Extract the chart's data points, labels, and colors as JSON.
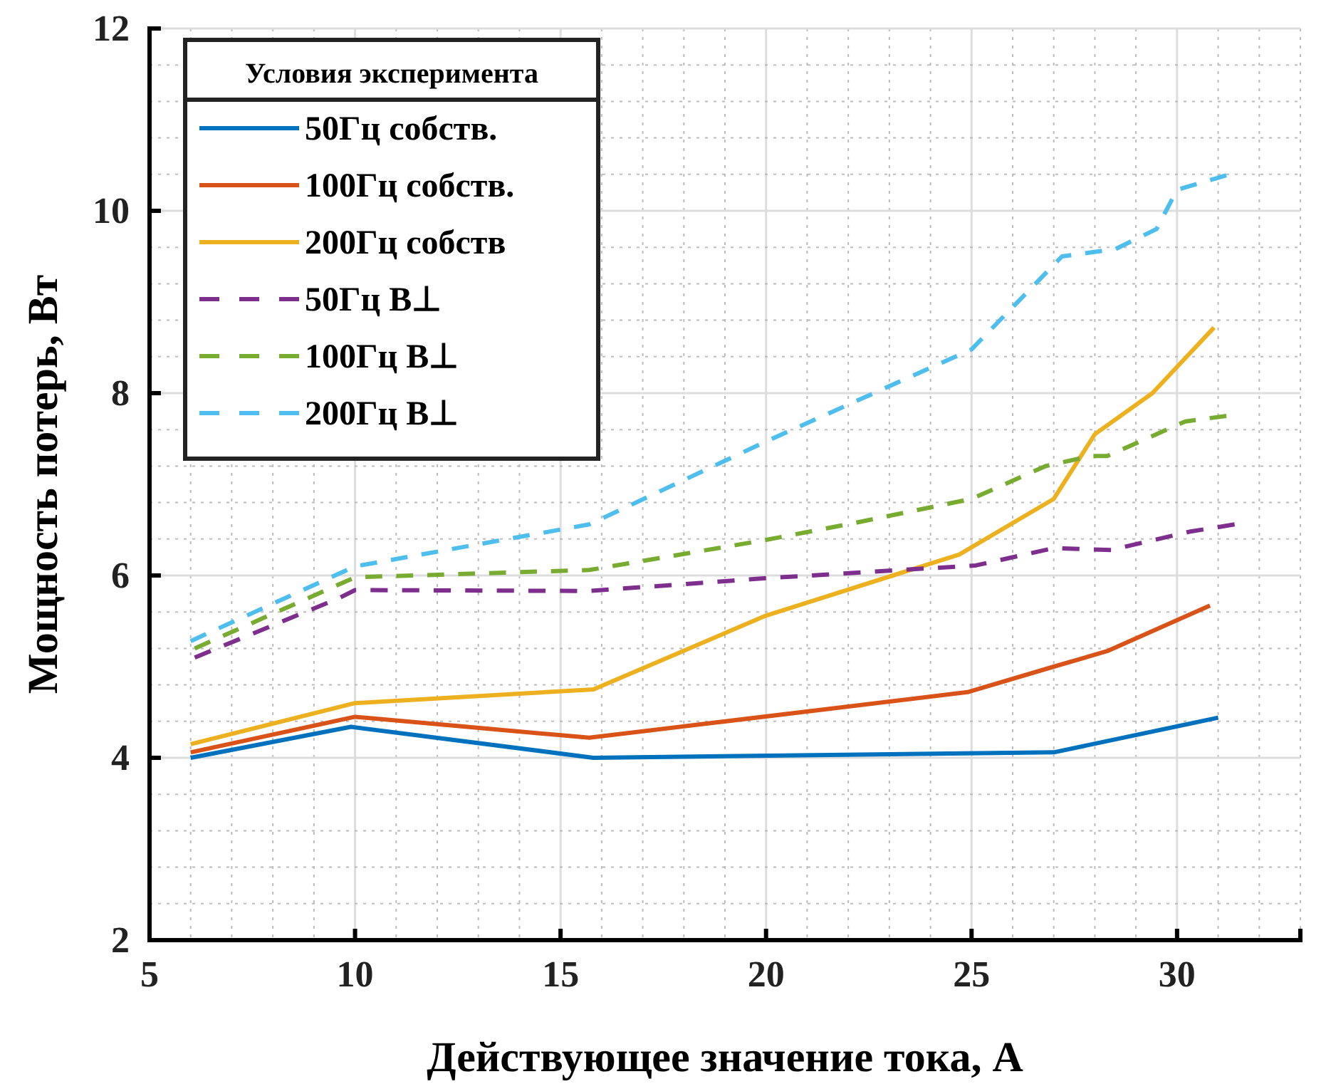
{
  "chart_data": {
    "type": "line",
    "xlabel": "Действующее значение тока, А",
    "ylabel": "Мощность потерь, Вт",
    "legend_title": "Условия эксперимента",
    "legend": "top left",
    "grid": true,
    "xlim": [
      5,
      33
    ],
    "xticks": [
      5,
      10,
      15,
      20,
      25,
      30
    ],
    "ylim": [
      2,
      12
    ],
    "yticks": [
      2,
      4,
      6,
      8,
      10,
      12
    ],
    "series": [
      {
        "name": "50Гц собств.",
        "color": "#0072bd",
        "line_style": "solid",
        "x": [
          6,
          9.9,
          15.8,
          27,
          31
        ],
        "values": [
          4.0,
          4.34,
          4.0,
          4.06,
          4.44
        ]
      },
      {
        "name": "100Гц собств.",
        "color": "#d95319",
        "line_style": "solid",
        "x": [
          6,
          10,
          15.7,
          24.9,
          27,
          28.3,
          30.8
        ],
        "values": [
          4.06,
          4.45,
          4.22,
          4.72,
          5.0,
          5.17,
          5.67
        ]
      },
      {
        "name": "200Гц собств",
        "color": "#edb120",
        "line_style": "solid",
        "x": [
          6,
          10,
          15.8,
          20,
          24.7,
          27,
          28,
          29.4,
          30.9
        ],
        "values": [
          4.15,
          4.6,
          4.75,
          5.56,
          6.23,
          6.84,
          7.55,
          8.0,
          8.72
        ]
      },
      {
        "name": "50Гц B⊥",
        "color": "#7e2f8e",
        "line_style": "dashed",
        "x": [
          6.1,
          9.6,
          10,
          15.7,
          20,
          25.1,
          27,
          28.4,
          30.3,
          31.4
        ],
        "values": [
          5.1,
          5.75,
          5.84,
          5.83,
          5.97,
          6.11,
          6.3,
          6.28,
          6.48,
          6.56
        ]
      },
      {
        "name": "100Гц B⊥",
        "color": "#77ac30",
        "line_style": "dashed",
        "x": [
          6.1,
          10,
          15.7,
          20,
          22.2,
          25,
          26.8,
          27.9,
          28.3,
          29.1,
          30.2,
          31.2
        ],
        "values": [
          5.2,
          5.98,
          6.06,
          6.39,
          6.58,
          6.84,
          7.2,
          7.31,
          7.31,
          7.47,
          7.69,
          7.75
        ]
      },
      {
        "name": "200Гц B⊥",
        "color": "#4dbeee",
        "line_style": "dashed",
        "x": [
          6,
          10,
          15.7,
          20,
          25,
          27.2,
          28.5,
          29.5,
          30,
          31.2
        ],
        "values": [
          5.28,
          6.1,
          6.56,
          7.47,
          8.48,
          9.5,
          9.58,
          9.8,
          10.23,
          10.39
        ]
      }
    ]
  }
}
